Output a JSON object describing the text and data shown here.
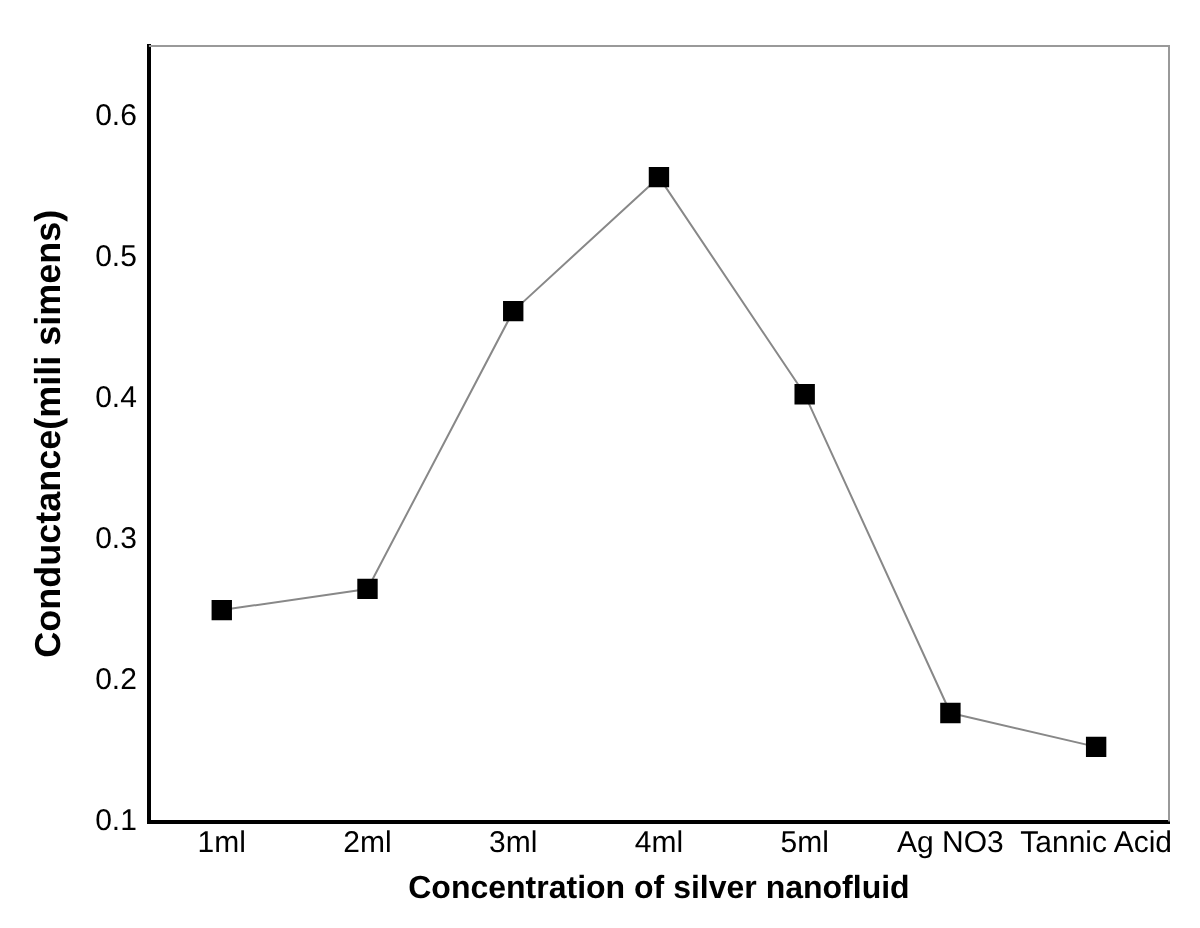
{
  "chart_data": {
    "type": "line",
    "xlabel": "Concentration of silver nanofluid",
    "ylabel": "Conductance(mili simens)",
    "categories": [
      "1ml",
      "2ml",
      "3ml",
      "4ml",
      "5ml",
      "Ag NO3",
      "Tannic Acid"
    ],
    "series": [
      {
        "color": "#000000",
        "values": [
          0.25,
          0.265,
          0.462,
          0.557,
          0.403,
          0.177,
          0.153
        ]
      }
    ],
    "ylim": [
      0.1,
      0.65
    ],
    "yticks": [
      0.1,
      0.2,
      0.3,
      0.4,
      0.5,
      0.6
    ],
    "grid": false,
    "legend": false,
    "marker": "square",
    "line_style": "solid"
  }
}
